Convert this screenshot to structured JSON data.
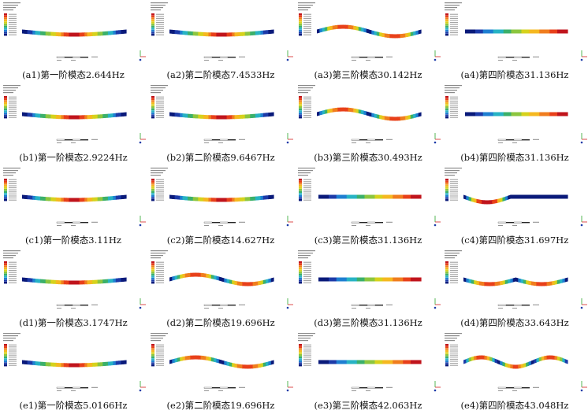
{
  "figure": {
    "legend_colors": [
      "#c0141c",
      "#e8401a",
      "#f07d1e",
      "#f5b820",
      "#d6d21c",
      "#8cc63f",
      "#3bb06a",
      "#27b3c4",
      "#1e7fd1",
      "#1c3aa8",
      "#0a1a7a"
    ],
    "rows": [
      [
        {
          "id": "a1",
          "caption": "(a1)第一阶模态2.644Hz",
          "shape": "bow-center"
        },
        {
          "id": "a2",
          "caption": "(a2)第二阶模态7.4533Hz",
          "shape": "bow-center"
        },
        {
          "id": "a3",
          "caption": "(a3)第三阶模态30.142Hz",
          "shape": "s-wave"
        },
        {
          "id": "a4",
          "caption": "(a4)第四阶模态31.136Hz",
          "shape": "axial"
        }
      ],
      [
        {
          "id": "b1",
          "caption": "(b1)第一阶模态2.9224Hz",
          "shape": "bow-center"
        },
        {
          "id": "b2",
          "caption": "(b2)第二阶模态9.6467Hz",
          "shape": "bow-center"
        },
        {
          "id": "b3",
          "caption": "(b3)第三阶模态30.493Hz",
          "shape": "s-wave"
        },
        {
          "id": "b4",
          "caption": "(b4)第四阶模态31.136Hz",
          "shape": "axial"
        }
      ],
      [
        {
          "id": "c1",
          "caption": "(c1)第一阶模态3.11Hz",
          "shape": "bow-center"
        },
        {
          "id": "c2",
          "caption": "(c2)第二阶模态14.627Hz",
          "shape": "bow-center"
        },
        {
          "id": "c3",
          "caption": "(c3)第三阶模态31.136Hz",
          "shape": "axial"
        },
        {
          "id": "c4",
          "caption": "(c4)第四阶模态31.697Hz",
          "shape": "left-dip"
        }
      ],
      [
        {
          "id": "d1",
          "caption": "(d1)第一阶模态3.1747Hz",
          "shape": "bow-center"
        },
        {
          "id": "d2",
          "caption": "(d2)第二阶模态19.696Hz",
          "shape": "s-wave"
        },
        {
          "id": "d3",
          "caption": "(d3)第三阶模态31.136Hz",
          "shape": "axial"
        },
        {
          "id": "d4",
          "caption": "(d4)第四阶模态33.643Hz",
          "shape": "double-dip"
        }
      ],
      [
        {
          "id": "e1",
          "caption": "(e1)第一阶模态5.0166Hz",
          "shape": "bow-center"
        },
        {
          "id": "e2",
          "caption": "(e2)第二阶模态19.696Hz",
          "shape": "s-wave"
        },
        {
          "id": "e3",
          "caption": "(e3)第三阶模态42.063Hz",
          "shape": "axial"
        },
        {
          "id": "e4",
          "caption": "(e4)第四阶模态43.048Hz",
          "shape": "triple-wave"
        }
      ]
    ]
  }
}
